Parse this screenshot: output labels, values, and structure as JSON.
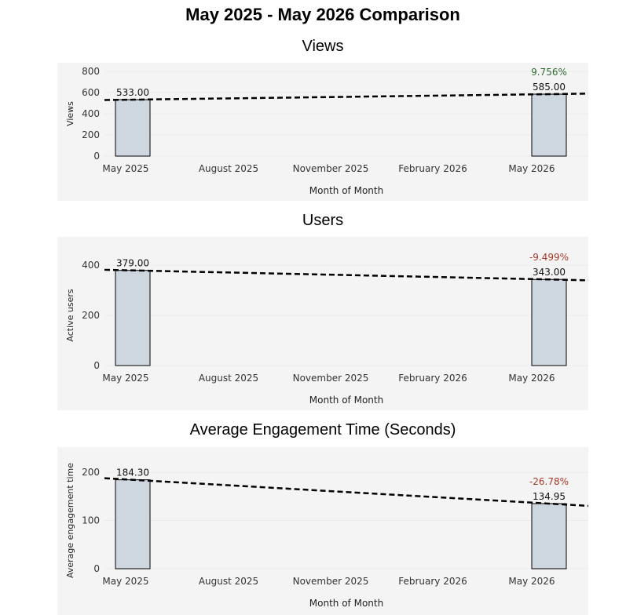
{
  "page_title": "May 2025 - May 2026 Comparison",
  "colors": {
    "bar_fill": "#ced6e0",
    "bar_stroke": "#000000",
    "positive": "#2e6b2e",
    "negative": "#a63a2a",
    "panel_bg": "#f4f4f4"
  },
  "chart_data": [
    {
      "type": "bar",
      "title": "Views",
      "xlabel": "Month of Month",
      "ylabel": "Views",
      "x_ticks": [
        "May 2025",
        "August 2025",
        "November 2025",
        "February 2026",
        "May 2026"
      ],
      "y_ticks": [
        "800",
        "600",
        "400",
        "200",
        "0"
      ],
      "ylim": [
        0,
        800
      ],
      "categories": [
        "May 2025",
        "May 2026"
      ],
      "values": [
        533,
        585
      ],
      "value_labels": [
        "533.00",
        "585.00"
      ],
      "change_label": "9.756%",
      "change_direction": "positive",
      "trend_line": true
    },
    {
      "type": "bar",
      "title": "Users",
      "xlabel": "Month of Month",
      "ylabel": "Active users",
      "x_ticks": [
        "May 2025",
        "August 2025",
        "November 2025",
        "February 2026",
        "May 2026"
      ],
      "y_ticks": [
        "400",
        "200",
        "0"
      ],
      "ylim": [
        0,
        400
      ],
      "categories": [
        "May 2025",
        "May 2026"
      ],
      "values": [
        379,
        343
      ],
      "value_labels": [
        "379.00",
        "343.00"
      ],
      "change_label": "-9.499%",
      "change_direction": "negative",
      "trend_line": true
    },
    {
      "type": "bar",
      "title": "Average Engagement Time (Seconds)",
      "xlabel": "Month of Month",
      "ylabel": "Average engagement time",
      "x_ticks": [
        "May 2025",
        "August 2025",
        "November 2025",
        "February 2026",
        "May 2026"
      ],
      "y_ticks": [
        "200",
        "100",
        "0"
      ],
      "ylim": [
        0,
        200
      ],
      "categories": [
        "May 2025",
        "May 2026"
      ],
      "values": [
        184.3,
        134.95
      ],
      "value_labels": [
        "184.30",
        "134.95"
      ],
      "change_label": "-26.78%",
      "change_direction": "negative",
      "trend_line": true
    }
  ]
}
